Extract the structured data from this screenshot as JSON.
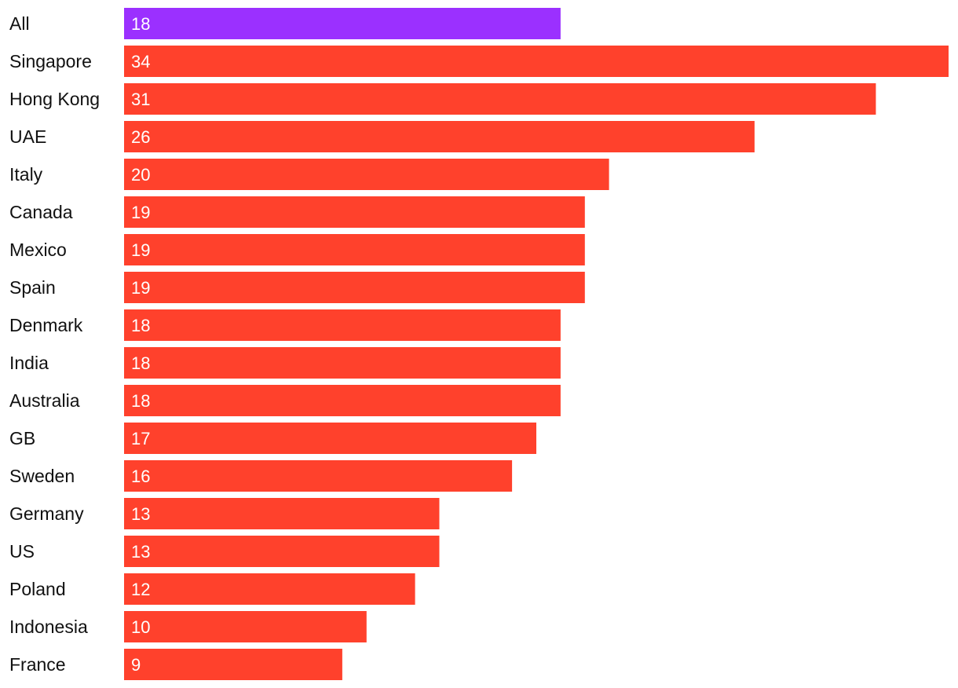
{
  "chart_data": {
    "type": "bar",
    "orientation": "horizontal",
    "title": "",
    "xlabel": "",
    "ylabel": "",
    "categories": [
      "All",
      "Singapore",
      "Hong Kong",
      "UAE",
      "Italy",
      "Canada",
      "Mexico",
      "Spain",
      "Denmark",
      "India",
      "Australia",
      "GB",
      "Sweden",
      "Germany",
      "US",
      "Poland",
      "Indonesia",
      "France"
    ],
    "values": [
      18,
      34,
      31,
      26,
      20,
      19,
      19,
      19,
      18,
      18,
      18,
      17,
      16,
      13,
      13,
      12,
      10,
      9
    ],
    "xlim": [
      0,
      34
    ],
    "grid": false,
    "legend": "none",
    "highlight_category": "All",
    "colors": {
      "highlight": "#9B30FF",
      "bar": "#FF412C",
      "value_label": "#ffffff",
      "category_label": "#111111"
    }
  }
}
